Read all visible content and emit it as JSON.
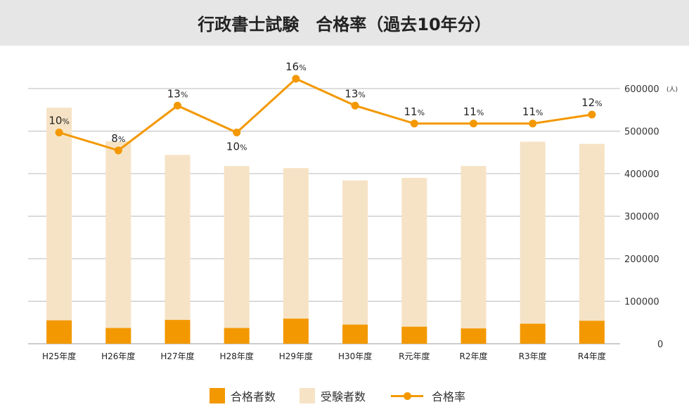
{
  "title": "行政書士試験　合格率（過去10年分）",
  "colors": {
    "passed": "#f39800",
    "applicants": "#f6e3c5",
    "rate": "#f39800",
    "grid": "#bbbbbb"
  },
  "legend": {
    "passed": "合格者数",
    "applicants": "受験者数",
    "rate": "合格率"
  },
  "chart_data": {
    "type": "bar",
    "title": "行政書士試験　合格率（過去10年分）",
    "categories": [
      "H25年度",
      "H26年度",
      "H27年度",
      "H28年度",
      "H29年度",
      "H30年度",
      "R元年度",
      "R2年度",
      "R3年度",
      "R4年度"
    ],
    "series": [
      {
        "name": "合格者数",
        "type": "bar",
        "values": [
          55000,
          37000,
          56000,
          37000,
          59000,
          45000,
          40000,
          36000,
          47000,
          54000
        ]
      },
      {
        "name": "受験者数",
        "type": "bar",
        "values": [
          555000,
          476000,
          444000,
          418000,
          413000,
          384000,
          390000,
          418000,
          475000,
          470000
        ]
      },
      {
        "name": "合格率",
        "type": "line",
        "values": [
          10,
          8,
          13,
          10,
          16,
          13,
          11,
          11,
          11,
          12
        ]
      }
    ],
    "rate_labels": [
      "10%",
      "8%",
      "13%",
      "10%",
      "16%",
      "13%",
      "11%",
      "11%",
      "11%",
      "12%"
    ],
    "rate_unit": "%",
    "y_ticks": [
      0,
      100000,
      200000,
      300000,
      400000,
      500000,
      600000
    ],
    "y_tick_labels": [
      "0",
      "100000",
      "200000",
      "300000",
      "400000",
      "500000",
      "600000"
    ],
    "y_unit": "(人)",
    "ylim": [
      0,
      600000
    ],
    "y_axis_side": "right",
    "grid": true,
    "legend_position": "bottom"
  }
}
